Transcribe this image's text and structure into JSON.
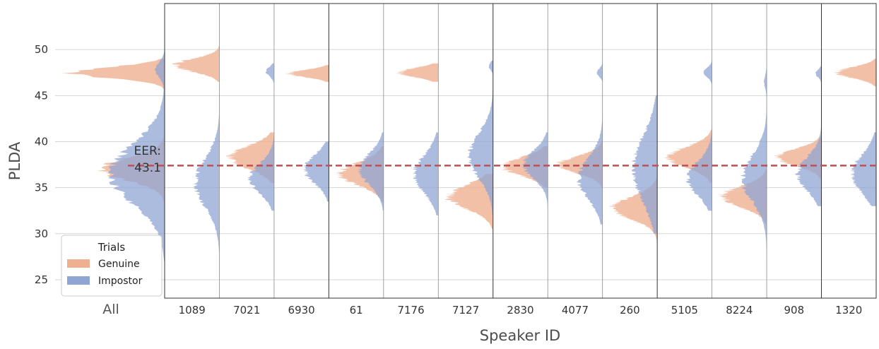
{
  "chart_data": {
    "type": "violin",
    "ylabel": "PLDA",
    "xlabel": "Speaker ID",
    "ylim": [
      23,
      55
    ],
    "yticks": [
      25,
      30,
      35,
      40,
      45,
      50
    ],
    "grid": true,
    "overall_label": "All",
    "eer": {
      "label_line1": "EER:",
      "label_line2": "43.1",
      "y": 37.4
    },
    "legend": {
      "title": "Trials",
      "placement": "lower-left",
      "entries": [
        {
          "name": "Genuine",
          "color": "#efb091"
        },
        {
          "name": "Impostor",
          "color": "#8fa6d4"
        }
      ]
    },
    "colors": {
      "genuine": "#efb091",
      "impostor": "#8fa6d4",
      "eer_line": "#c44e52"
    },
    "overall": {
      "genuine": [
        {
          "center": 47.5,
          "spread": 0.6,
          "weight": 0.6
        },
        {
          "center": 37.0,
          "spread": 1.2,
          "weight": 0.4
        }
      ],
      "impostor": [
        {
          "center": 47.8,
          "spread": 0.8,
          "weight": 0.15
        },
        {
          "center": 36.5,
          "spread": 3.2,
          "weight": 0.85
        }
      ],
      "genuine_range": [
        31,
        49
      ],
      "impostor_range": [
        27,
        51
      ]
    },
    "speakers": [
      {
        "id": "1089",
        "genuine": [
          {
            "center": 48.3,
            "spread": 0.7,
            "weight": 1
          }
        ],
        "genuine_range": [
          46.5,
          51.5
        ],
        "impostor": [
          {
            "center": 35.5,
            "spread": 2.6,
            "weight": 1
          }
        ],
        "impostor_range": [
          28,
          45
        ]
      },
      {
        "id": "7021",
        "genuine": [
          {
            "center": 38.3,
            "spread": 1.2,
            "weight": 1
          }
        ],
        "genuine_range": [
          35.5,
          41
        ],
        "impostor": [
          {
            "center": 47.6,
            "spread": 0.5,
            "weight": 0.25
          },
          {
            "center": 36.0,
            "spread": 1.6,
            "weight": 0.75
          }
        ],
        "impostor_range": [
          32.5,
          48.5
        ]
      },
      {
        "id": "6930",
        "genuine": [
          {
            "center": 47.4,
            "spread": 0.4,
            "weight": 1
          }
        ],
        "genuine_range": [
          46.5,
          48.3
        ],
        "impostor": [
          {
            "center": 37.0,
            "spread": 1.5,
            "weight": 1
          }
        ],
        "impostor_range": [
          33.5,
          40
        ]
      },
      {
        "id": "61",
        "genuine": [
          {
            "center": 36.5,
            "spread": 1.2,
            "weight": 1
          }
        ],
        "genuine_range": [
          33.5,
          39.5
        ],
        "impostor": [
          {
            "center": 37.0,
            "spread": 1.7,
            "weight": 1
          }
        ],
        "impostor_range": [
          32.5,
          41
        ]
      },
      {
        "id": "7176",
        "genuine": [
          {
            "center": 47.5,
            "spread": 0.5,
            "weight": 1
          }
        ],
        "genuine_range": [
          46.5,
          48.5
        ],
        "impostor": [
          {
            "center": 36.5,
            "spread": 2.0,
            "weight": 1
          }
        ],
        "impostor_range": [
          32,
          41
        ]
      },
      {
        "id": "7127",
        "genuine": [
          {
            "center": 34.0,
            "spread": 1.3,
            "weight": 1
          }
        ],
        "genuine_range": [
          30.5,
          36.5
        ],
        "impostor": [
          {
            "center": 48.2,
            "spread": 0.4,
            "weight": 0.15
          },
          {
            "center": 38.5,
            "spread": 2.4,
            "weight": 0.85
          }
        ],
        "impostor_range": [
          32,
          48.8
        ]
      },
      {
        "id": "2830",
        "genuine": [
          {
            "center": 37.3,
            "spread": 1.0,
            "weight": 1
          }
        ],
        "genuine_range": [
          35,
          39.5
        ],
        "impostor": [
          {
            "center": 37.5,
            "spread": 1.5,
            "weight": 1
          }
        ],
        "impostor_range": [
          32,
          41
        ]
      },
      {
        "id": "4077",
        "genuine": [
          {
            "center": 37.5,
            "spread": 0.9,
            "weight": 1
          }
        ],
        "genuine_range": [
          35,
          40
        ],
        "impostor": [
          {
            "center": 47.5,
            "spread": 0.4,
            "weight": 0.2
          },
          {
            "center": 36.0,
            "spread": 2.2,
            "weight": 0.8
          }
        ],
        "impostor_range": [
          31,
          48.8
        ]
      },
      {
        "id": "260",
        "genuine": [
          {
            "center": 32.8,
            "spread": 1.2,
            "weight": 1
          }
        ],
        "genuine_range": [
          29,
          36
        ],
        "impostor": [
          {
            "center": 37.0,
            "spread": 3.5,
            "weight": 1
          }
        ],
        "impostor_range": [
          30,
          45
        ]
      },
      {
        "id": "5105",
        "genuine": [
          {
            "center": 38.3,
            "spread": 1.1,
            "weight": 1
          }
        ],
        "genuine_range": [
          35.5,
          41.3
        ],
        "impostor": [
          {
            "center": 47.5,
            "spread": 0.5,
            "weight": 0.25
          },
          {
            "center": 36.0,
            "spread": 1.8,
            "weight": 0.75
          }
        ],
        "impostor_range": [
          32.5,
          49
        ]
      },
      {
        "id": "8224",
        "genuine": [
          {
            "center": 34.0,
            "spread": 1.1,
            "weight": 1
          }
        ],
        "genuine_range": [
          31,
          37
        ],
        "impostor": [
          {
            "center": 46.5,
            "spread": 0.7,
            "weight": 0.1
          },
          {
            "center": 36.0,
            "spread": 2.5,
            "weight": 0.9
          }
        ],
        "impostor_range": [
          26,
          48.2
        ]
      },
      {
        "id": "908",
        "genuine": [
          {
            "center": 38.3,
            "spread": 0.9,
            "weight": 1
          }
        ],
        "genuine_range": [
          36,
          40.5
        ],
        "impostor": [
          {
            "center": 47.4,
            "spread": 0.4,
            "weight": 0.2
          },
          {
            "center": 36.5,
            "spread": 1.8,
            "weight": 0.8
          }
        ],
        "impostor_range": [
          33,
          48.2
        ]
      },
      {
        "id": "1320",
        "genuine": [
          {
            "center": 47.5,
            "spread": 0.6,
            "weight": 1
          }
        ],
        "genuine_range": [
          46,
          49
        ],
        "impostor": [
          {
            "center": 36.5,
            "spread": 2.0,
            "weight": 1
          }
        ],
        "impostor_range": [
          33,
          41
        ]
      }
    ]
  }
}
